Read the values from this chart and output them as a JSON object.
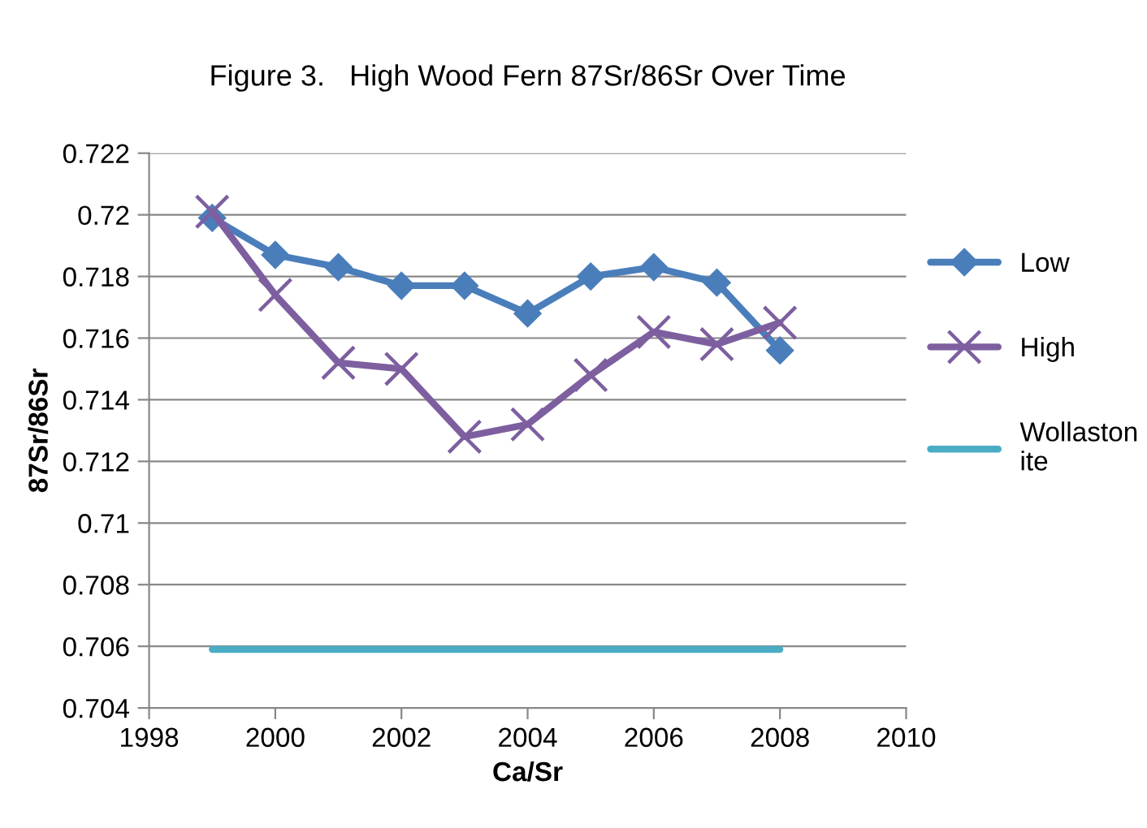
{
  "chart_data": {
    "type": "line",
    "title": "Figure 3.   High Wood Fern 87Sr/86Sr Over Time",
    "xlabel": "Ca/Sr",
    "ylabel": "87Sr/86Sr",
    "x": [
      1999,
      2000,
      2001,
      2002,
      2003,
      2004,
      2005,
      2006,
      2007,
      2008
    ],
    "series": [
      {
        "name": "Low",
        "color": "#4a7ebb",
        "marker": "diamond",
        "values": [
          0.7199,
          0.7187,
          0.7183,
          0.7177,
          0.7177,
          0.7168,
          0.718,
          0.7183,
          0.7178,
          0.7156
        ]
      },
      {
        "name": "High",
        "color": "#7d5fa0",
        "marker": "cross",
        "values": [
          0.7201,
          0.7174,
          0.7152,
          0.715,
          0.7128,
          0.7132,
          0.7148,
          0.7162,
          0.7158,
          0.7165
        ]
      },
      {
        "name": "Wollaston\nite",
        "color": "#4bacc6",
        "marker": "none",
        "values": [
          0.7059,
          0.7059,
          0.7059,
          0.7059,
          0.7059,
          0.7059,
          0.7059,
          0.7059,
          0.7059,
          0.7059
        ]
      }
    ],
    "xlim": [
      1998,
      2010
    ],
    "xticks": [
      1998,
      2000,
      2002,
      2004,
      2006,
      2008,
      2010
    ],
    "ylim": [
      0.704,
      0.722
    ],
    "yticks": [
      {
        "value": 0.704,
        "label": "0.704"
      },
      {
        "value": 0.706,
        "label": "0.706"
      },
      {
        "value": 0.708,
        "label": "0.708"
      },
      {
        "value": 0.71,
        "label": "0.71"
      },
      {
        "value": 0.712,
        "label": "0.712"
      },
      {
        "value": 0.714,
        "label": "0.714"
      },
      {
        "value": 0.716,
        "label": "0.716"
      },
      {
        "value": 0.718,
        "label": "0.718"
      },
      {
        "value": 0.72,
        "label": "0.72"
      },
      {
        "value": 0.722,
        "label": "0.722"
      }
    ],
    "grid": "y",
    "legend": "right"
  }
}
